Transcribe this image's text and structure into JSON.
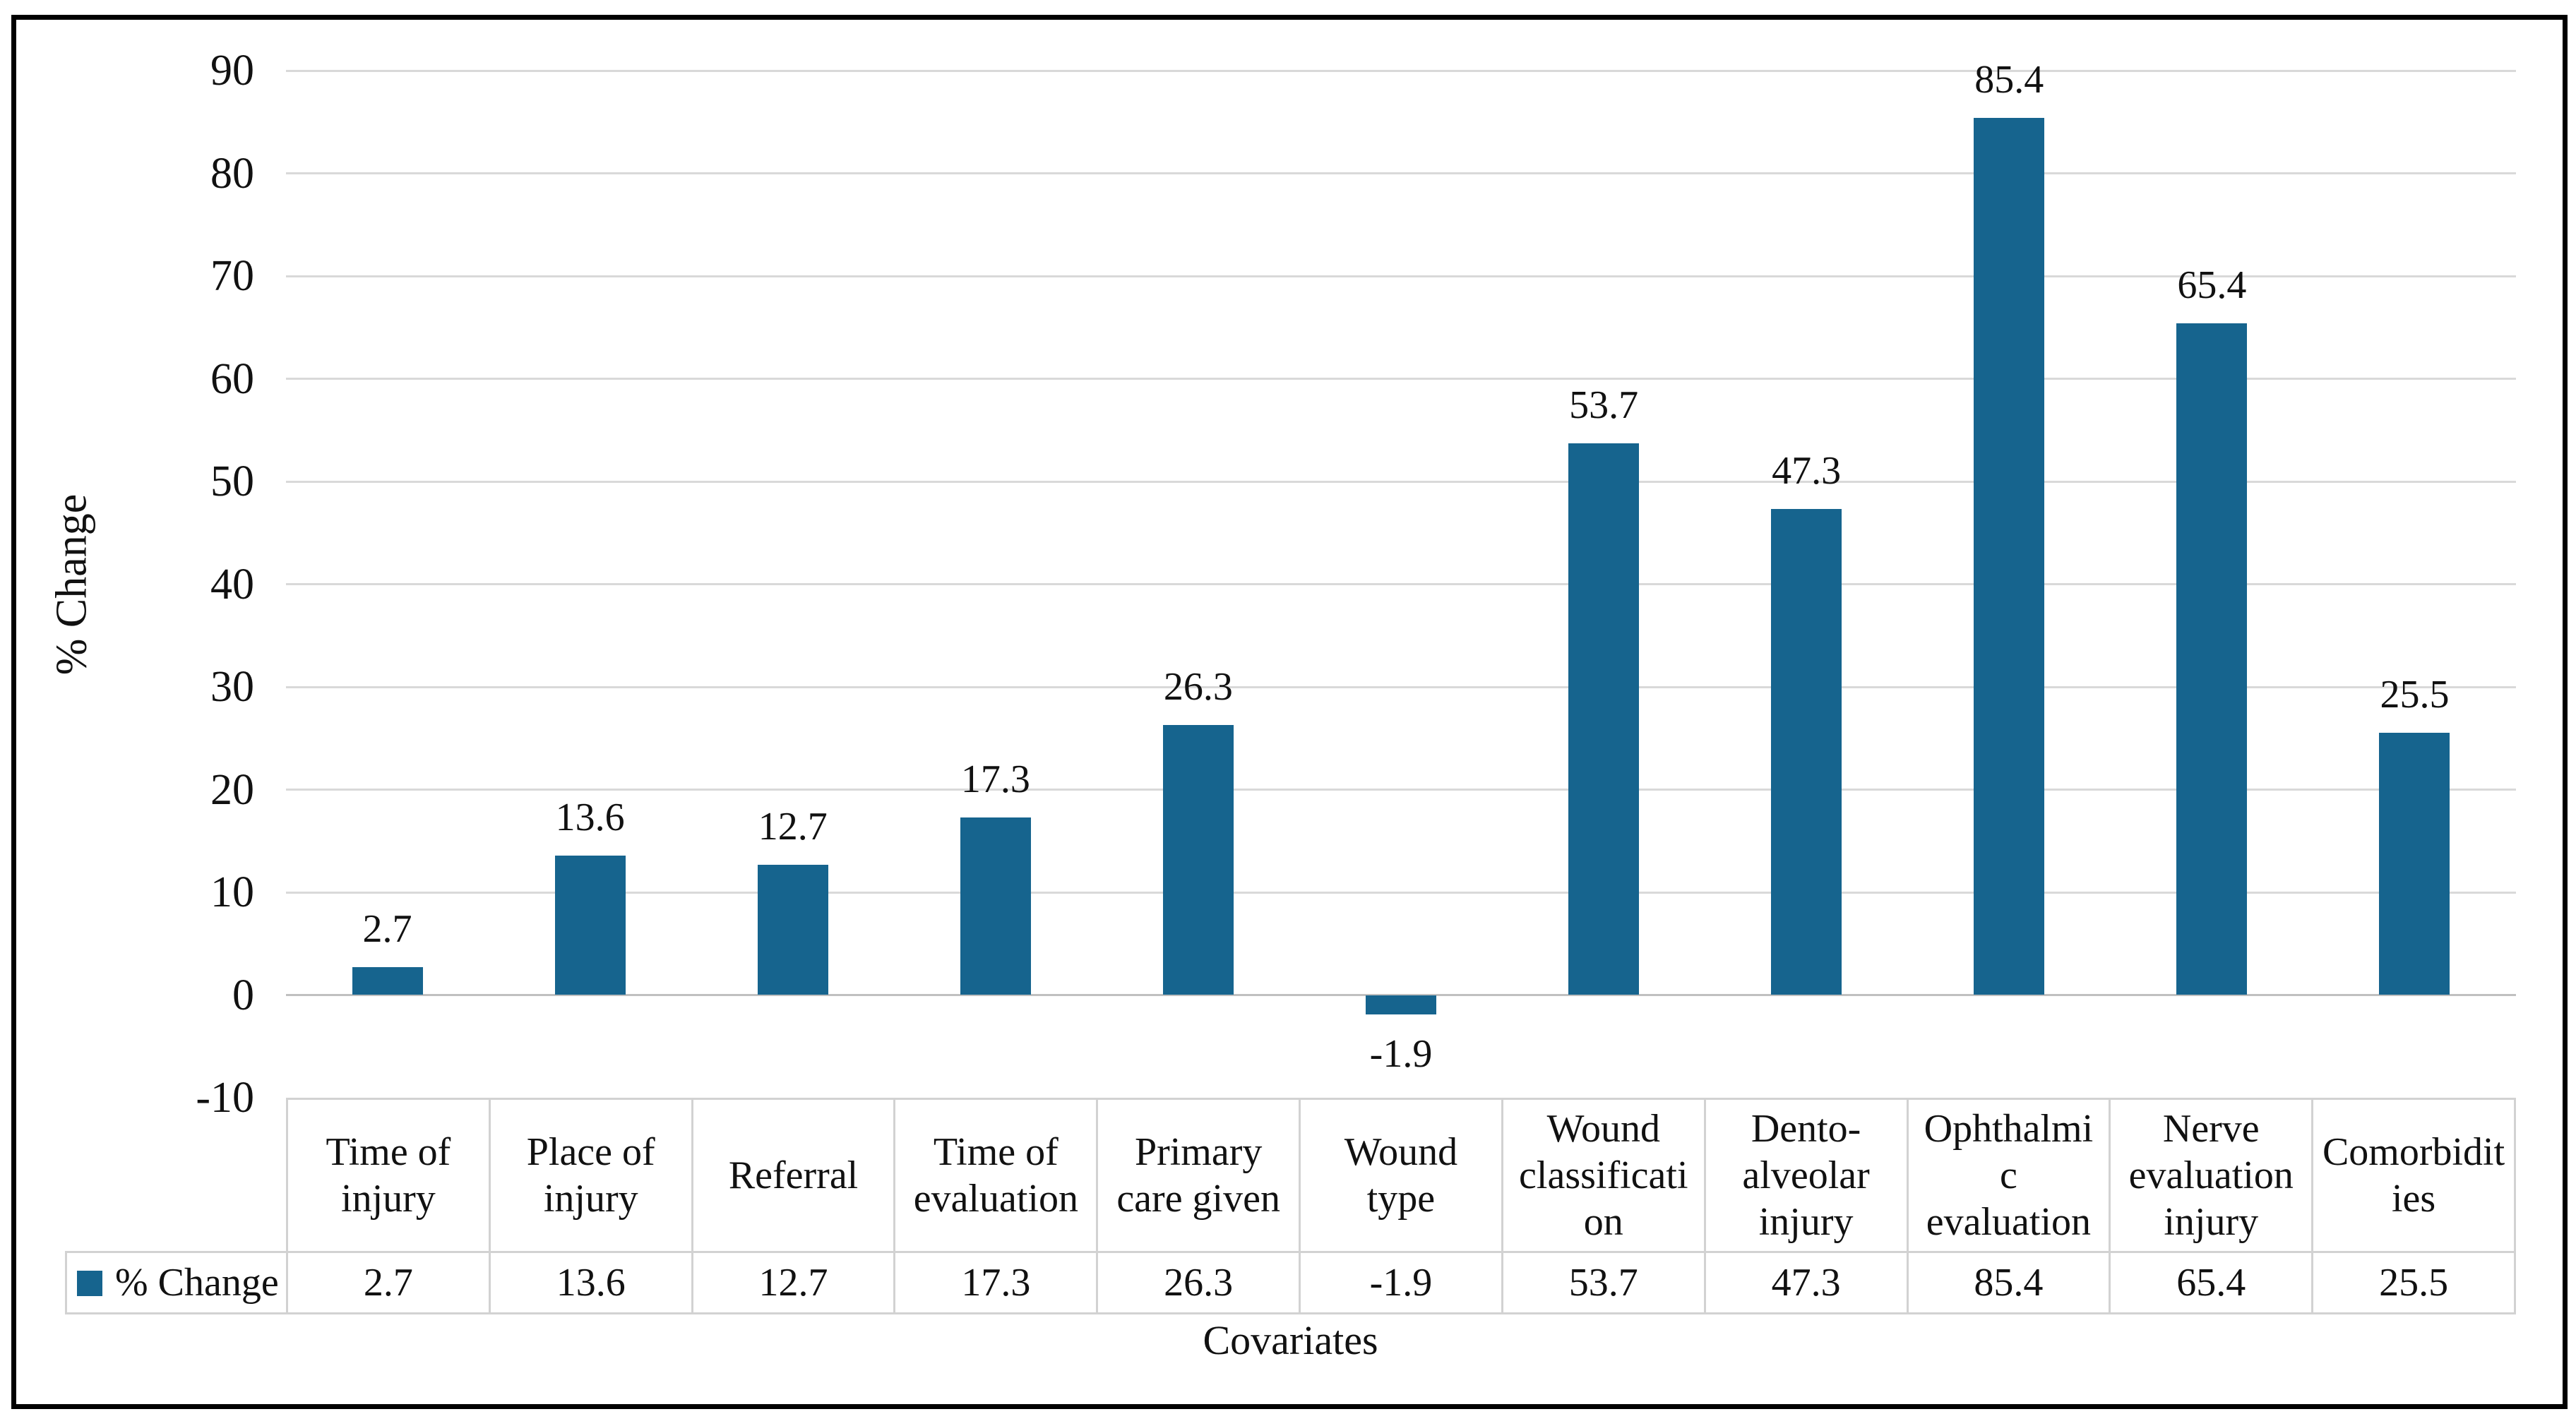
{
  "chart_data": {
    "type": "bar",
    "title": "",
    "xlabel": "Covariates",
    "ylabel": "% Change",
    "ylim": [
      -10,
      90
    ],
    "ytick_step": 10,
    "grid": true,
    "legend_position": "bottom-left-table",
    "categories": [
      "Time of injury",
      "Place of injury",
      "Referral",
      "Time of evaluation",
      "Primary care given",
      "Wound type",
      "Wound classification",
      "Dento-alveolar injury",
      "Ophthalmic evaluation",
      "Nerve evaluation injury",
      "Comorbidities"
    ],
    "series": [
      {
        "name": "% Change",
        "color": "#16648E",
        "values": [
          2.7,
          13.6,
          12.7,
          17.3,
          26.3,
          -1.9,
          53.7,
          47.3,
          85.4,
          65.4,
          25.5
        ]
      }
    ],
    "data_labels_shown": true
  },
  "colors": {
    "bar": "#16648E",
    "gridline": "#D9D9D9",
    "zero_line": "#C0C0C0",
    "table_border": "#D2D2D2",
    "frame_border": "#000000",
    "text": "#111111",
    "background": "#FFFFFF"
  }
}
